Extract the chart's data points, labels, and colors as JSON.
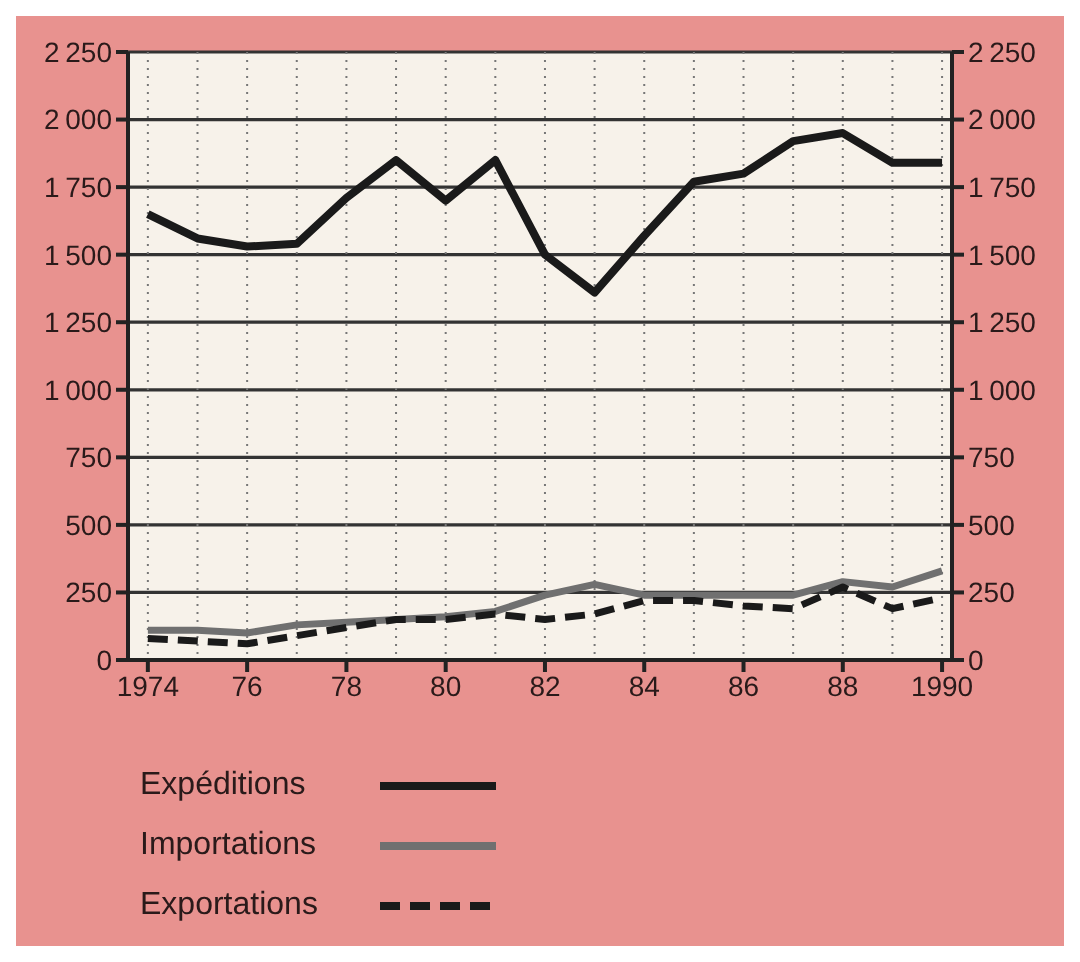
{
  "chart_data": {
    "type": "line",
    "x": [
      1974,
      1975,
      1976,
      1977,
      1978,
      1979,
      1980,
      1981,
      1982,
      1983,
      1984,
      1985,
      1986,
      1987,
      1988,
      1989,
      1990
    ],
    "series": [
      {
        "name": "Expéditions",
        "color": "#1a1a1a",
        "line_style": "solid",
        "values": [
          1650,
          1560,
          1530,
          1540,
          1710,
          1850,
          1700,
          1850,
          1500,
          1360,
          1570,
          1770,
          1800,
          1920,
          1950,
          1840,
          1840
        ]
      },
      {
        "name": "Importations",
        "color": "#707070",
        "line_style": "solid",
        "values": [
          110,
          110,
          100,
          130,
          140,
          150,
          160,
          180,
          240,
          280,
          240,
          240,
          240,
          240,
          290,
          270,
          330
        ]
      },
      {
        "name": "Exportations",
        "color": "#1a1a1a",
        "line_style": "dashed",
        "values": [
          80,
          70,
          60,
          90,
          120,
          150,
          150,
          170,
          150,
          170,
          220,
          220,
          200,
          190,
          270,
          190,
          230
        ]
      }
    ],
    "xlim": [
      1973.6,
      1990.2
    ],
    "xticks": [
      1974,
      {
        "value": 1976,
        "label": "76"
      },
      {
        "value": 1978,
        "label": "78"
      },
      {
        "value": 1980,
        "label": "80"
      },
      {
        "value": 1982,
        "label": "82"
      },
      {
        "value": 1984,
        "label": "84"
      },
      {
        "value": 1986,
        "label": "86"
      },
      {
        "value": 1988,
        "label": "88"
      },
      1990
    ],
    "ylim": [
      0,
      2250
    ],
    "yticks": [
      0,
      250,
      500,
      750,
      1000,
      1250,
      1500,
      1750,
      2000,
      2250
    ],
    "y2lim": [
      0,
      2250
    ],
    "y2ticks": [
      0,
      250,
      500,
      750,
      1000,
      1250,
      1500,
      1750,
      2000,
      2250
    ],
    "grid": true,
    "legend": "bottom",
    "marker": "none"
  }
}
